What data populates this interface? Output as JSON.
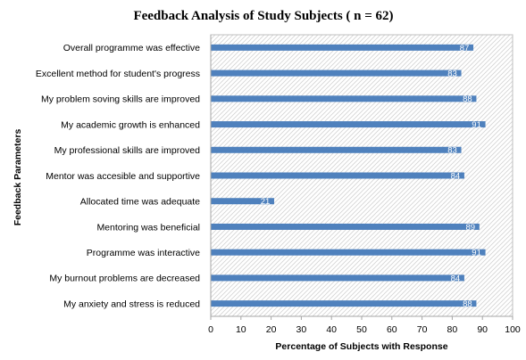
{
  "chart_data": {
    "type": "bar",
    "orientation": "horizontal",
    "title": "Feedback Analysis of Study Subjects ( n = 62)",
    "xlabel": "Percentage of Subjects with Response",
    "ylabel": "Feedback  Parameters",
    "xlim": [
      0,
      100
    ],
    "xticks": [
      0,
      10,
      20,
      30,
      40,
      50,
      60,
      70,
      80,
      90,
      100
    ],
    "grid": "hatched plot area",
    "legend": "none",
    "data_labels": true,
    "colors": {
      "bar": "#4f81bd",
      "plot_area_hatch": "#d4d4d4",
      "plot_border": "#bfbfbf",
      "axis": "#a6a6a6",
      "data_label": "#ffffff"
    },
    "categories": [
      "Overall programme was effective",
      "Excellent method for student's progress",
      "My problem soving skills are improved",
      "My academic growth is enhanced",
      "My professional skills are improved",
      "Mentor was accesible and supportive",
      "Allocated time was adequate",
      "Mentoring was beneficial",
      "Programme was interactive",
      "My burnout problems are decreased",
      "My anxiety and stress is reduced"
    ],
    "values": [
      87,
      83,
      88,
      91,
      83,
      84,
      21,
      89,
      91,
      84,
      88
    ]
  }
}
